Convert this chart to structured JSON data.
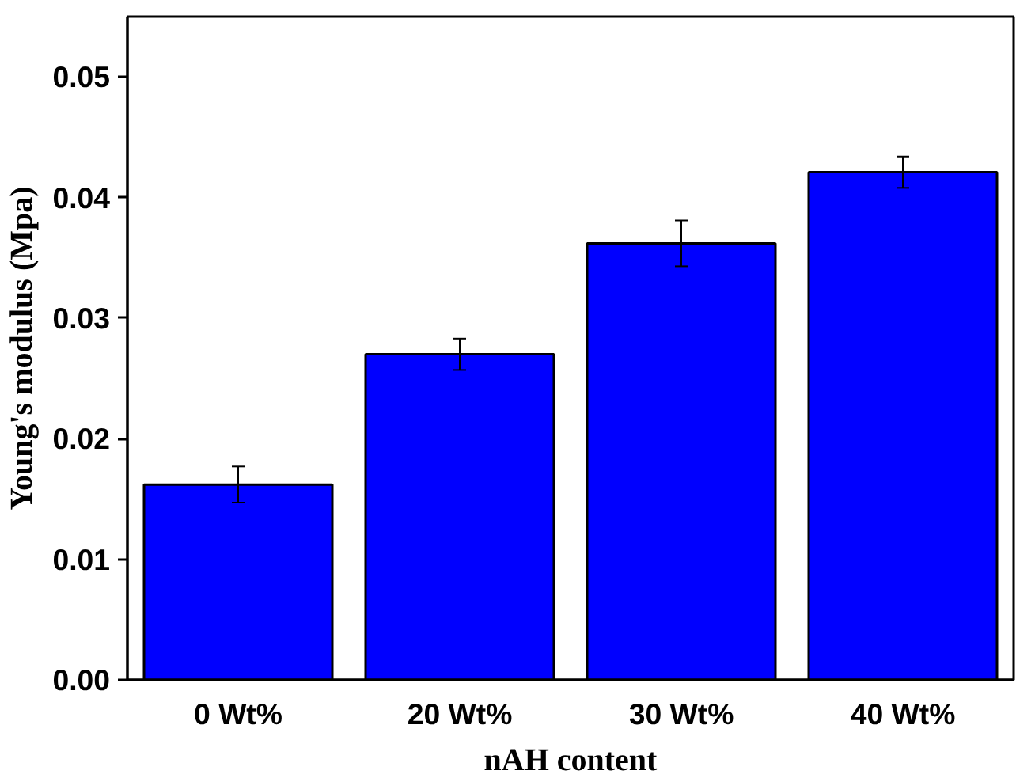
{
  "chart_data": {
    "type": "bar",
    "xlabel": "nAH content",
    "ylabel": "Young's modulus (Mpa)",
    "categories": [
      "0 Wt%",
      "20 Wt%",
      "30 Wt%",
      "40 Wt%"
    ],
    "values": [
      0.0162,
      0.027,
      0.0362,
      0.0421
    ],
    "errors": [
      0.0015,
      0.0013,
      0.0019,
      0.0013
    ],
    "color": "#0000ff",
    "ylim": [
      0,
      0.055
    ],
    "yticks": [
      {
        "value": 0,
        "label": "0.00"
      },
      0.01,
      0.02,
      0.03,
      0.04,
      0.05
    ],
    "grid": false
  }
}
